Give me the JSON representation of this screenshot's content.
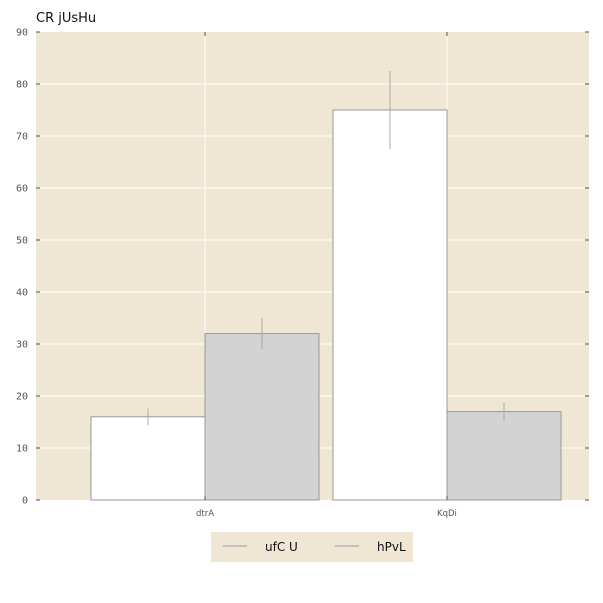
{
  "chart_data": {
    "type": "bar",
    "title": "CR  jUsHu",
    "xlabel": "",
    "ylabel": "",
    "categories": [
      "dtrA",
      "KqDi"
    ],
    "ylim": [
      0,
      90
    ],
    "yticks": [
      0,
      10,
      20,
      30,
      40,
      50,
      60,
      70,
      80,
      90
    ],
    "grid": true,
    "legend_position": "bottom-center",
    "series": [
      {
        "name": "ufC U",
        "values": [
          16,
          75
        ],
        "error": [
          [
            1.6,
            7.5
          ],
          [
            1.6,
            7.5
          ]
        ],
        "color": "#ffffff"
      },
      {
        "name": "hPvL",
        "values": [
          32,
          17
        ],
        "error": [
          3,
          1.7
        ],
        "color": "#d3d3d3"
      }
    ],
    "colors": {
      "plot_background": "#efe7d3",
      "bar_edge": "#9a9a9a",
      "error_bar": "#aaaaaa",
      "grid": "#ffffff"
    }
  }
}
